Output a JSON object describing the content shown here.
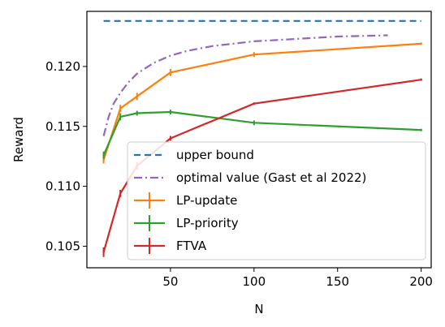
{
  "chart_data": {
    "type": "line",
    "title": "",
    "xlabel": "N",
    "ylabel": "Reward",
    "xlim": [
      0,
      206
    ],
    "ylim": [
      0.1032,
      0.1246
    ],
    "xticks": [
      50,
      100,
      150,
      200
    ],
    "xtick_labels": [
      "50",
      "100",
      "150",
      "200"
    ],
    "yticks": [
      0.105,
      0.11,
      0.115,
      0.12
    ],
    "ytick_labels": [
      "0.105",
      "0.110",
      "0.115",
      "0.120"
    ],
    "grid": false,
    "legend_position": "lower-right",
    "series": [
      {
        "name": "upper bound",
        "color": "#1f77b4",
        "style": "dashed",
        "x": [
          10,
          200
        ],
        "y": [
          0.1238,
          0.1238
        ]
      },
      {
        "name": "optimal value (Gast et al 2022)",
        "color": "#9467bd",
        "style": "dashdot",
        "x": [
          10,
          13,
          16,
          20,
          25,
          30,
          40,
          50,
          60,
          75,
          100,
          125,
          150,
          180
        ],
        "y": [
          0.1142,
          0.1158,
          0.1169,
          0.1178,
          0.1187,
          0.1194,
          0.1203,
          0.1209,
          0.1213,
          0.1217,
          0.1221,
          0.1223,
          0.1225,
          0.1226
        ]
      },
      {
        "name": "LP-update",
        "color": "#ff7f0e",
        "style": "solid",
        "errorbars": true,
        "x": [
          10,
          20,
          30,
          50,
          100,
          200
        ],
        "y": [
          0.1122,
          0.1165,
          0.1175,
          0.1195,
          0.121,
          0.1219
        ],
        "err": [
          0.0003,
          0.0003,
          0.0003,
          0.0003,
          0.0002,
          0.0001
        ]
      },
      {
        "name": "LP-priority",
        "color": "#2ca02c",
        "style": "solid",
        "errorbars": true,
        "x": [
          10,
          20,
          30,
          50,
          100,
          200
        ],
        "y": [
          0.1126,
          0.1158,
          0.1161,
          0.1162,
          0.1153,
          0.1147
        ],
        "err": [
          0.0003,
          0.0003,
          0.0002,
          0.0002,
          0.0002,
          0.0001
        ]
      },
      {
        "name": "FTVA",
        "color": "#d62728",
        "style": "solid",
        "errorbars": true,
        "x": [
          10,
          20,
          30,
          50,
          100,
          200
        ],
        "y": [
          0.1045,
          0.1094,
          0.1117,
          0.114,
          0.1169,
          0.1189
        ],
        "err": [
          0.0004,
          0.0003,
          0.0003,
          0.0002,
          0.0001,
          0.0001
        ]
      }
    ]
  }
}
